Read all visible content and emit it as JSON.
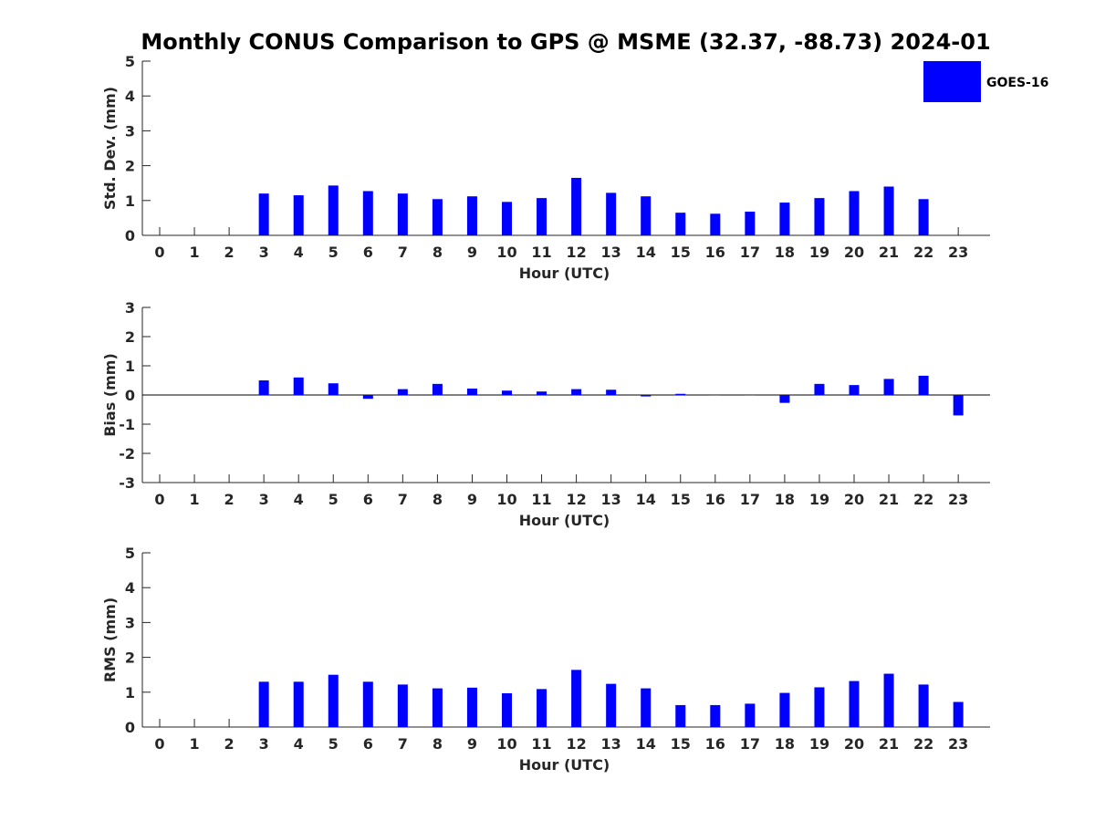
{
  "chart_data": {
    "type": "bar",
    "title": "Monthly CONUS Comparison to GPS @ MSME (32.37, -88.73) 2024-01",
    "legend": {
      "label": "GOES-16",
      "color": "#0000ff",
      "placement": "top-right"
    },
    "bar_color": "#0000ff",
    "categories": [
      "0",
      "1",
      "2",
      "3",
      "4",
      "5",
      "6",
      "7",
      "8",
      "9",
      "10",
      "11",
      "12",
      "13",
      "14",
      "15",
      "16",
      "17",
      "18",
      "19",
      "20",
      "21",
      "22",
      "23"
    ],
    "panels": [
      {
        "ylabel": "Std. Dev. (mm)",
        "xlabel": "Hour (UTC)",
        "ylim": [
          0,
          5
        ],
        "yticks": [
          "0",
          "1",
          "2",
          "3",
          "4",
          "5"
        ],
        "series": [
          {
            "name": "GOES-16",
            "values": [
              null,
              null,
              null,
              1.2,
              1.15,
              1.43,
              1.27,
              1.2,
              1.04,
              1.12,
              0.96,
              1.07,
              1.65,
              1.22,
              1.12,
              0.65,
              0.62,
              0.68,
              0.94,
              1.07,
              1.27,
              1.4,
              1.04,
              null
            ]
          }
        ]
      },
      {
        "ylabel": "Bias (mm)",
        "xlabel": "Hour (UTC)",
        "ylim": [
          -3,
          3
        ],
        "yticks": [
          "-3",
          "-2",
          "-1",
          "0",
          "1",
          "2",
          "3"
        ],
        "series": [
          {
            "name": "GOES-16",
            "values": [
              null,
              null,
              null,
              0.5,
              0.6,
              0.4,
              -0.13,
              0.2,
              0.38,
              0.22,
              0.15,
              0.12,
              0.2,
              0.18,
              -0.05,
              0.04,
              0.0,
              0.0,
              -0.27,
              0.38,
              0.34,
              0.55,
              0.66,
              -0.7
            ]
          }
        ]
      },
      {
        "ylabel": "RMS (mm)",
        "xlabel": "Hour (UTC)",
        "ylim": [
          0,
          5
        ],
        "yticks": [
          "0",
          "1",
          "2",
          "3",
          "4",
          "5"
        ],
        "series": [
          {
            "name": "GOES-16",
            "values": [
              null,
              null,
              null,
              1.3,
              1.3,
              1.5,
              1.3,
              1.22,
              1.11,
              1.13,
              0.97,
              1.09,
              1.64,
              1.24,
              1.11,
              0.63,
              0.63,
              0.67,
              0.98,
              1.14,
              1.32,
              1.53,
              1.22,
              0.72
            ]
          }
        ]
      }
    ]
  }
}
